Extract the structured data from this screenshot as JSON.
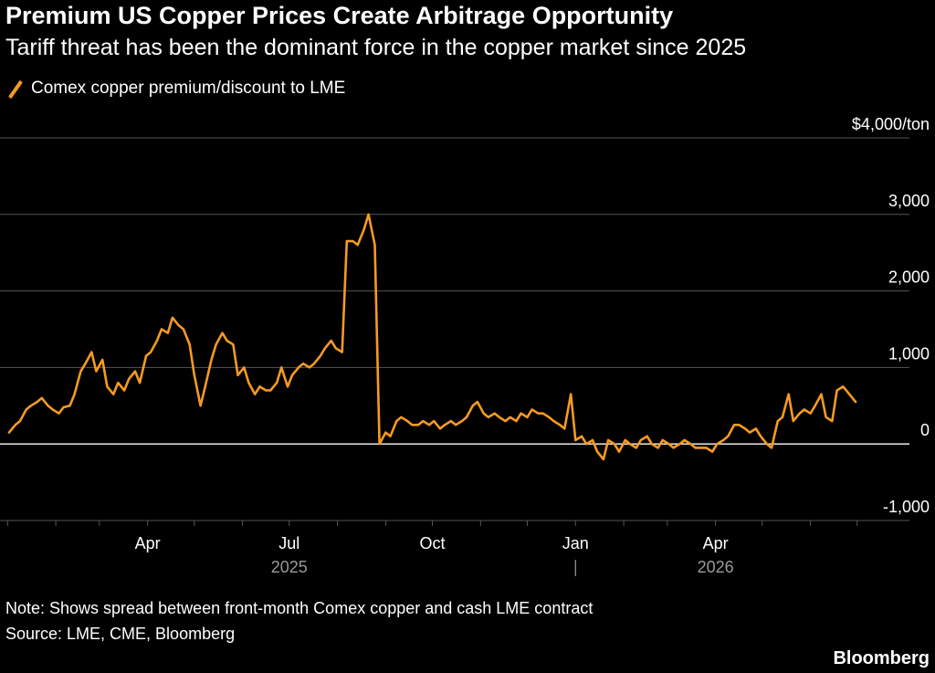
{
  "title": "Premium US Copper Prices Create Arbitrage Opportunity",
  "subtitle": "Tariff threat has been the dominant force in the copper market since 2025",
  "note": "Note: Shows spread between front-month Comex copper and cash LME contract",
  "source": "Source: LME, CME, Bloomberg",
  "brand": "Bloomberg",
  "colors": {
    "background": "#000000",
    "series": "#f59a23",
    "gridline": "#555555",
    "zeroline": "#ffffff",
    "text": "#ffffff",
    "muted": "#9a9a9a"
  },
  "chart_data": {
    "type": "line",
    "title": "Premium US Copper Prices Create Arbitrage Opportunity",
    "subtitle": "Tariff threat has been the dominant force in the copper market since 2025",
    "xlabel": "",
    "ylabel": "",
    "unit_label": "$4,000/ton",
    "ylim": [
      -1000,
      4000
    ],
    "xlim": [
      "2025-01-02",
      "2026-06-30"
    ],
    "grid": true,
    "legend_position": "top-left",
    "y_ticks": [
      {
        "value": 4000,
        "label": "$4,000/ton"
      },
      {
        "value": 3000,
        "label": "3,000"
      },
      {
        "value": 2000,
        "label": "2,000"
      },
      {
        "value": 1000,
        "label": "1,000"
      },
      {
        "value": 0,
        "label": "0"
      },
      {
        "value": -1000,
        "label": "-1,000"
      }
    ],
    "x_ticks": [
      {
        "date": "2025-04-01",
        "label": "Apr"
      },
      {
        "date": "2025-07-01",
        "label": "Jul"
      },
      {
        "date": "2025-10-01",
        "label": "Oct"
      },
      {
        "date": "2026-01-01",
        "label": "Jan"
      },
      {
        "date": "2026-04-01",
        "label": "Apr"
      }
    ],
    "year_labels": [
      {
        "date": "2025-07-01",
        "label": "2025"
      },
      {
        "date": "2026-04-01",
        "label": "2026"
      }
    ],
    "year_divider_date": "2026-01-01",
    "series": [
      {
        "name": "Comex copper premium/discount to LME",
        "color": "#f59a23",
        "points": [
          [
            "2025-01-02",
            150
          ],
          [
            "2025-01-06",
            250
          ],
          [
            "2025-01-09",
            300
          ],
          [
            "2025-01-13",
            450
          ],
          [
            "2025-01-16",
            500
          ],
          [
            "2025-01-20",
            550
          ],
          [
            "2025-01-23",
            600
          ],
          [
            "2025-01-27",
            500
          ],
          [
            "2025-01-30",
            450
          ],
          [
            "2025-02-03",
            400
          ],
          [
            "2025-02-06",
            480
          ],
          [
            "2025-02-10",
            500
          ],
          [
            "2025-02-13",
            650
          ],
          [
            "2025-02-17",
            950
          ],
          [
            "2025-02-20",
            1050
          ],
          [
            "2025-02-24",
            1200
          ],
          [
            "2025-02-27",
            950
          ],
          [
            "2025-03-03",
            1100
          ],
          [
            "2025-03-06",
            750
          ],
          [
            "2025-03-10",
            650
          ],
          [
            "2025-03-13",
            800
          ],
          [
            "2025-03-17",
            700
          ],
          [
            "2025-03-20",
            850
          ],
          [
            "2025-03-24",
            950
          ],
          [
            "2025-03-27",
            800
          ],
          [
            "2025-03-31",
            1150
          ],
          [
            "2025-04-03",
            1200
          ],
          [
            "2025-04-07",
            1350
          ],
          [
            "2025-04-10",
            1500
          ],
          [
            "2025-04-14",
            1450
          ],
          [
            "2025-04-17",
            1650
          ],
          [
            "2025-04-21",
            1550
          ],
          [
            "2025-04-24",
            1500
          ],
          [
            "2025-04-28",
            1300
          ],
          [
            "2025-05-01",
            900
          ],
          [
            "2025-05-05",
            500
          ],
          [
            "2025-05-08",
            750
          ],
          [
            "2025-05-12",
            1100
          ],
          [
            "2025-05-15",
            1300
          ],
          [
            "2025-05-19",
            1450
          ],
          [
            "2025-05-22",
            1350
          ],
          [
            "2025-05-26",
            1300
          ],
          [
            "2025-05-29",
            900
          ],
          [
            "2025-06-02",
            1000
          ],
          [
            "2025-06-05",
            800
          ],
          [
            "2025-06-09",
            650
          ],
          [
            "2025-06-12",
            750
          ],
          [
            "2025-06-16",
            700
          ],
          [
            "2025-06-19",
            700
          ],
          [
            "2025-06-23",
            800
          ],
          [
            "2025-06-26",
            1000
          ],
          [
            "2025-06-30",
            750
          ],
          [
            "2025-07-03",
            900
          ],
          [
            "2025-07-07",
            1000
          ],
          [
            "2025-07-10",
            1050
          ],
          [
            "2025-07-14",
            1000
          ],
          [
            "2025-07-17",
            1050
          ],
          [
            "2025-07-21",
            1150
          ],
          [
            "2025-07-24",
            1250
          ],
          [
            "2025-07-28",
            1350
          ],
          [
            "2025-07-31",
            1250
          ],
          [
            "2025-08-04",
            1200
          ],
          [
            "2025-08-07",
            2650
          ],
          [
            "2025-08-11",
            2650
          ],
          [
            "2025-08-14",
            2600
          ],
          [
            "2025-08-18",
            2800
          ],
          [
            "2025-08-21",
            3000
          ],
          [
            "2025-08-25",
            2600
          ],
          [
            "2025-08-28",
            0
          ],
          [
            "2025-09-01",
            150
          ],
          [
            "2025-09-04",
            100
          ],
          [
            "2025-09-08",
            300
          ],
          [
            "2025-09-11",
            350
          ],
          [
            "2025-09-15",
            300
          ],
          [
            "2025-09-18",
            250
          ],
          [
            "2025-09-22",
            250
          ],
          [
            "2025-09-25",
            300
          ],
          [
            "2025-09-29",
            250
          ],
          [
            "2025-10-02",
            300
          ],
          [
            "2025-10-06",
            200
          ],
          [
            "2025-10-09",
            250
          ],
          [
            "2025-10-13",
            300
          ],
          [
            "2025-10-16",
            250
          ],
          [
            "2025-10-20",
            300
          ],
          [
            "2025-10-23",
            350
          ],
          [
            "2025-10-27",
            500
          ],
          [
            "2025-10-30",
            550
          ],
          [
            "2025-11-03",
            400
          ],
          [
            "2025-11-06",
            350
          ],
          [
            "2025-11-10",
            400
          ],
          [
            "2025-11-13",
            350
          ],
          [
            "2025-11-17",
            300
          ],
          [
            "2025-11-20",
            350
          ],
          [
            "2025-11-24",
            300
          ],
          [
            "2025-11-27",
            400
          ],
          [
            "2025-12-01",
            350
          ],
          [
            "2025-12-04",
            450
          ],
          [
            "2025-12-08",
            400
          ],
          [
            "2025-12-11",
            400
          ],
          [
            "2025-12-15",
            350
          ],
          [
            "2025-12-18",
            300
          ],
          [
            "2025-12-22",
            250
          ],
          [
            "2025-12-25",
            200
          ],
          [
            "2025-12-29",
            650
          ],
          [
            "2026-01-01",
            50
          ],
          [
            "2026-01-05",
            100
          ],
          [
            "2026-01-08",
            0
          ],
          [
            "2026-01-12",
            50
          ],
          [
            "2026-01-15",
            -100
          ],
          [
            "2026-01-19",
            -200
          ],
          [
            "2026-01-22",
            50
          ],
          [
            "2026-01-26",
            0
          ],
          [
            "2026-01-29",
            -100
          ],
          [
            "2026-02-02",
            50
          ],
          [
            "2026-02-05",
            0
          ],
          [
            "2026-02-09",
            -50
          ],
          [
            "2026-02-12",
            50
          ],
          [
            "2026-02-16",
            100
          ],
          [
            "2026-02-19",
            0
          ],
          [
            "2026-02-23",
            -50
          ],
          [
            "2026-02-26",
            50
          ],
          [
            "2026-03-02",
            0
          ],
          [
            "2026-03-05",
            -50
          ],
          [
            "2026-03-09",
            0
          ],
          [
            "2026-03-12",
            50
          ],
          [
            "2026-03-16",
            0
          ],
          [
            "2026-03-19",
            -50
          ],
          [
            "2026-03-23",
            -50
          ],
          [
            "2026-03-26",
            -50
          ],
          [
            "2026-03-30",
            -100
          ],
          [
            "2026-04-02",
            0
          ],
          [
            "2026-04-06",
            50
          ],
          [
            "2026-04-09",
            100
          ],
          [
            "2026-04-13",
            250
          ],
          [
            "2026-04-16",
            250
          ],
          [
            "2026-04-20",
            200
          ],
          [
            "2026-04-23",
            150
          ],
          [
            "2026-04-27",
            200
          ],
          [
            "2026-04-30",
            100
          ],
          [
            "2026-05-04",
            0
          ],
          [
            "2026-05-07",
            -50
          ],
          [
            "2026-05-11",
            300
          ],
          [
            "2026-05-14",
            350
          ],
          [
            "2026-05-18",
            650
          ],
          [
            "2026-05-21",
            300
          ],
          [
            "2026-05-25",
            400
          ],
          [
            "2026-05-28",
            450
          ],
          [
            "2026-06-01",
            400
          ],
          [
            "2026-06-04",
            500
          ],
          [
            "2026-06-08",
            650
          ],
          [
            "2026-06-11",
            350
          ],
          [
            "2026-06-15",
            300
          ],
          [
            "2026-06-18",
            700
          ],
          [
            "2026-06-22",
            750
          ],
          [
            "2026-06-26",
            650
          ],
          [
            "2026-06-30",
            550
          ]
        ]
      }
    ]
  }
}
